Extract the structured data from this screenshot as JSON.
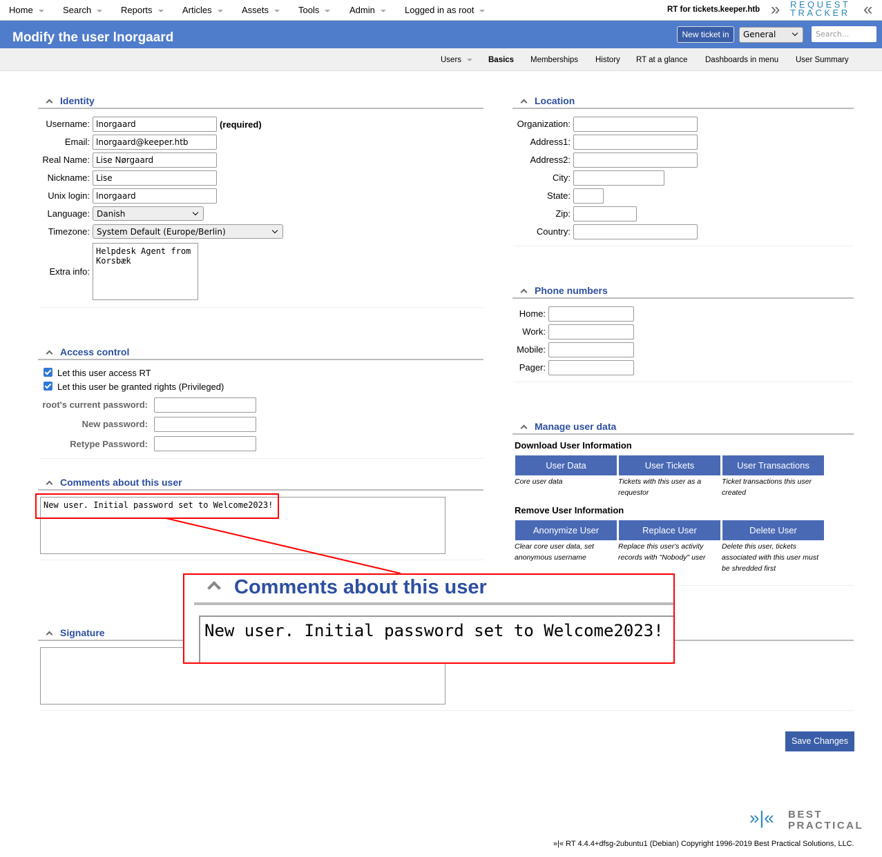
{
  "menu": {
    "items": [
      "Home",
      "Search",
      "Reports",
      "Articles",
      "Assets",
      "Tools",
      "Admin",
      "Logged in as root"
    ],
    "site": "RT for tickets.keeper.htb",
    "logo": "REQUEST TRACKER"
  },
  "header": {
    "title": "Modify the user lnorgaard",
    "new_ticket": "New ticket in",
    "queue": "General",
    "search_placeholder": "Search..."
  },
  "subnav": [
    "Users",
    "Basics",
    "Memberships",
    "History",
    "RT at a glance",
    "Dashboards in menu",
    "User Summary"
  ],
  "identity": {
    "title": "Identity",
    "username_label": "Username:",
    "username": "lnorgaard",
    "required": "(required)",
    "email_label": "Email:",
    "email": "lnorgaard@keeper.htb",
    "realname_label": "Real Name:",
    "realname": "Lise Nørgaard",
    "nickname_label": "Nickname:",
    "nickname": "Lise",
    "unix_label": "Unix login:",
    "unix": "lnorgaard",
    "language_label": "Language:",
    "language": "Danish",
    "timezone_label": "Timezone:",
    "timezone": "System Default (Europe/Berlin)",
    "extra_label": "Extra info:",
    "extra": "Helpdesk Agent from\nKorsbæk"
  },
  "access": {
    "title": "Access control",
    "cb1": "Let this user access RT",
    "cb2": "Let this user be granted rights (Privileged)",
    "current_pw": "root's current password:",
    "new_pw": "New password:",
    "retype_pw": "Retype Password:"
  },
  "comments": {
    "title": "Comments about this user",
    "value": "New user. Initial password set to Welcome2023!"
  },
  "signature": {
    "title": "Signature"
  },
  "location": {
    "title": "Location",
    "labels": [
      "Organization:",
      "Address1:",
      "Address2:",
      "City:",
      "State:",
      "Zip:",
      "Country:"
    ]
  },
  "phone": {
    "title": "Phone numbers",
    "labels": [
      "Home:",
      "Work:",
      "Mobile:",
      "Pager:"
    ]
  },
  "manage": {
    "title": "Manage user data",
    "download": "Download User Information",
    "remove": "Remove User Information",
    "buttons": [
      {
        "label": "User Data",
        "desc": "Core user data"
      },
      {
        "label": "User Tickets",
        "desc": "Tickets with this user as a requestor"
      },
      {
        "label": "User Transactions",
        "desc": "Ticket transactions this user created"
      },
      {
        "label": "Anonymize User",
        "desc": "Clear core user data, set anonymous username"
      },
      {
        "label": "Replace User",
        "desc": "Replace this user's activity records with \"Nobody\" user"
      },
      {
        "label": "Delete User",
        "desc": "Delete this user, tickets associated with this user must be shredded first"
      }
    ]
  },
  "save": "Save Changes",
  "footer": {
    "logo": "BEST PRACTICAL",
    "copyright": "»|« RT 4.4.4+dfsg-2ubuntu1 (Debian) Copyright 1996-2019 Best Practical Solutions, LLC."
  },
  "colors": {
    "header": "#4f7ccb",
    "button": "#4a69b5",
    "section_title": "#2d4fa0",
    "annotation": "#ff0000"
  }
}
